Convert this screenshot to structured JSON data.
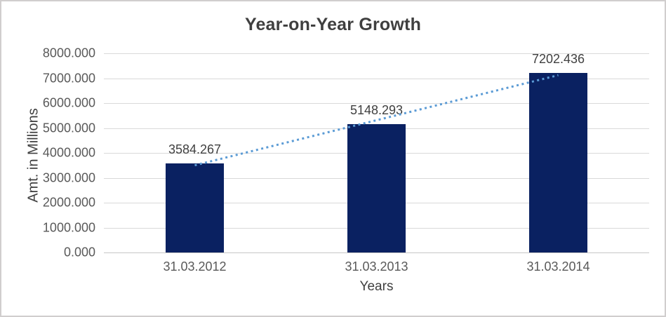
{
  "chart": {
    "title": "Year-on-Year Growth",
    "y_axis_title": "Amt. in Millions",
    "x_axis_title": "Years"
  },
  "chart_data": {
    "type": "bar",
    "title": "Year-on-Year Growth",
    "xlabel": "Years",
    "ylabel": "Amt. in Millions",
    "categories": [
      "31.03.2012",
      "31.03.2013",
      "31.03.2014"
    ],
    "values": [
      3584.267,
      5148.293,
      7202.436
    ],
    "data_labels": [
      "3584.267",
      "5148.293",
      "7202.436"
    ],
    "ytick_labels": [
      "0.000",
      "1000.000",
      "2000.000",
      "3000.000",
      "4000.000",
      "5000.000",
      "6000.000",
      "7000.000",
      "8000.000"
    ],
    "ylim": [
      0,
      8000
    ],
    "ytick_step": 1000,
    "tick_format_decimals": 3,
    "grid": true,
    "legend": "none",
    "trendline": {
      "type": "linear",
      "style": "dotted",
      "color": "#5b9bd5"
    },
    "colors": {
      "bar": "#0a2161",
      "gridline": "#d9d9d9",
      "axis_line": "#c6c6c6",
      "tick_text": "#595959",
      "label_text": "#404040",
      "border": "#d0cece",
      "background": "#ffffff"
    }
  }
}
